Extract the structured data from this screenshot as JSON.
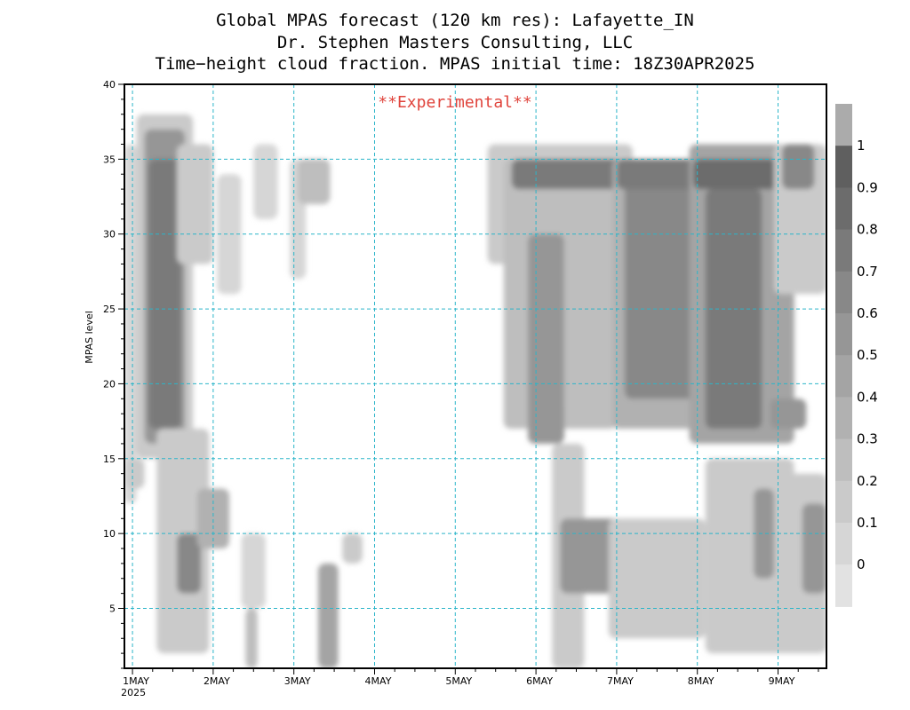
{
  "titles": [
    "Global MPAS forecast (120 km res): Lafayette_IN",
    "Dr. Stephen Masters Consulting, LLC",
    "Time−height cloud fraction.   MPAS initial time: 18Z30APR2025"
  ],
  "chart_data": {
    "type": "heatmap",
    "title": "Global MPAS forecast (120 km res): Lafayette_IN",
    "subtitle": "Time−height cloud fraction.   MPAS initial time: 18Z30APR2025",
    "credit": "Dr. Stephen Masters Consulting, LLC",
    "annotation": "**Experimental**",
    "ylabel": "MPAS level",
    "xlabel": "",
    "ylim": [
      1,
      40
    ],
    "xlim": [
      -0.1,
      8.6
    ],
    "y_ticks": [
      5,
      10,
      15,
      20,
      25,
      30,
      35,
      40
    ],
    "x_ticks": [
      {
        "x": 0,
        "label": "1MAY",
        "sub": "2025"
      },
      {
        "x": 1,
        "label": "2MAY"
      },
      {
        "x": 2,
        "label": "3MAY"
      },
      {
        "x": 3,
        "label": "4MAY"
      },
      {
        "x": 4,
        "label": "5MAY"
      },
      {
        "x": 5,
        "label": "6MAY"
      },
      {
        "x": 6,
        "label": "7MAY"
      },
      {
        "x": 7,
        "label": "8MAY"
      },
      {
        "x": 8,
        "label": "9MAY"
      }
    ],
    "grid": true,
    "colorbar": {
      "levels": [
        0,
        0.1,
        0.2,
        0.3,
        0.4,
        0.5,
        0.6,
        0.7,
        0.8,
        0.9,
        1
      ],
      "labels": [
        "0",
        "0.1",
        "0.2",
        "0.3",
        "0.4",
        "0.5",
        "0.6",
        "0.7",
        "0.8",
        "0.9",
        "1"
      ],
      "colors": [
        "#e2e2e2",
        "#d6d6d6",
        "#cacaca",
        "#bebebe",
        "#b1b1b1",
        "#a4a4a4",
        "#969696",
        "#888888",
        "#7a7a7a",
        "#6c6c6c",
        "#5f5f5f",
        "#ababab"
      ]
    },
    "cloud_regions": [
      {
        "x0": -0.1,
        "x1": 0.05,
        "y0": 12,
        "y1": 36,
        "value": 0.15
      },
      {
        "x0": 0.05,
        "x1": 0.75,
        "y0": 15,
        "y1": 38,
        "value": 0.25
      },
      {
        "x0": 0.15,
        "x1": 0.65,
        "y0": 16,
        "y1": 37,
        "value": 0.6
      },
      {
        "x0": 0.2,
        "x1": 0.6,
        "y0": 17,
        "y1": 35,
        "value": 0.85
      },
      {
        "x0": 0.55,
        "x1": 1.0,
        "y0": 28,
        "y1": 36,
        "value": 0.2
      },
      {
        "x0": 0.3,
        "x1": 0.95,
        "y0": 2,
        "y1": 17,
        "value": 0.2
      },
      {
        "x0": 0.55,
        "x1": 0.85,
        "y0": 6,
        "y1": 10,
        "value": 0.7
      },
      {
        "x0": 0.8,
        "x1": 1.2,
        "y0": 9,
        "y1": 13,
        "value": 0.4
      },
      {
        "x0": -0.1,
        "x1": 0.15,
        "y0": 13,
        "y1": 15,
        "value": 0.25
      },
      {
        "x0": 1.05,
        "x1": 1.35,
        "y0": 26,
        "y1": 34,
        "value": 0.15
      },
      {
        "x0": 1.35,
        "x1": 1.65,
        "y0": 5,
        "y1": 10,
        "value": 0.15
      },
      {
        "x0": 1.4,
        "x1": 1.55,
        "y0": 1,
        "y1": 5,
        "value": 0.3
      },
      {
        "x0": 1.5,
        "x1": 1.8,
        "y0": 31,
        "y1": 36,
        "value": 0.15
      },
      {
        "x0": 1.95,
        "x1": 2.15,
        "y0": 27,
        "y1": 35,
        "value": 0.1
      },
      {
        "x0": 2.05,
        "x1": 2.45,
        "y0": 32,
        "y1": 35,
        "value": 0.3
      },
      {
        "x0": 2.3,
        "x1": 2.55,
        "y0": 1,
        "y1": 8,
        "value": 0.5
      },
      {
        "x0": 2.6,
        "x1": 2.85,
        "y0": 8,
        "y1": 10,
        "value": 0.25
      },
      {
        "x0": 4.4,
        "x1": 6.2,
        "y0": 28,
        "y1": 36,
        "value": 0.2
      },
      {
        "x0": 4.6,
        "x1": 6.0,
        "y0": 17,
        "y1": 35,
        "value": 0.3
      },
      {
        "x0": 4.9,
        "x1": 5.35,
        "y0": 16,
        "y1": 30,
        "value": 0.6
      },
      {
        "x0": 5.35,
        "x1": 6.0,
        "y0": 18,
        "y1": 34,
        "value": 0.35
      },
      {
        "x0": 4.7,
        "x1": 6.3,
        "y0": 33,
        "y1": 35,
        "value": 0.85
      },
      {
        "x0": 5.2,
        "x1": 5.6,
        "y0": 1,
        "y1": 16,
        "value": 0.2
      },
      {
        "x0": 5.3,
        "x1": 6.1,
        "y0": 6,
        "y1": 11,
        "value": 0.6
      },
      {
        "x0": 5.95,
        "x1": 7.1,
        "y0": 17,
        "y1": 35,
        "value": 0.45
      },
      {
        "x0": 6.1,
        "x1": 7.0,
        "y0": 19,
        "y1": 34,
        "value": 0.75
      },
      {
        "x0": 6.0,
        "x1": 7.2,
        "y0": 33,
        "y1": 35,
        "value": 0.85
      },
      {
        "x0": 5.9,
        "x1": 7.1,
        "y0": 3,
        "y1": 11,
        "value": 0.25
      },
      {
        "x0": 6.9,
        "x1": 8.2,
        "y0": 16,
        "y1": 36,
        "value": 0.5
      },
      {
        "x0": 7.1,
        "x1": 7.8,
        "y0": 17,
        "y1": 33,
        "value": 0.8
      },
      {
        "x0": 6.95,
        "x1": 8.0,
        "y0": 33,
        "y1": 35,
        "value": 0.9
      },
      {
        "x0": 7.9,
        "x1": 8.35,
        "y0": 17,
        "y1": 19,
        "value": 0.6
      },
      {
        "x0": 7.1,
        "x1": 8.2,
        "y0": 2,
        "y1": 15,
        "value": 0.25
      },
      {
        "x0": 7.7,
        "x1": 7.95,
        "y0": 7,
        "y1": 13,
        "value": 0.6
      },
      {
        "x0": 7.95,
        "x1": 8.6,
        "y0": 26,
        "y1": 36,
        "value": 0.2
      },
      {
        "x0": 8.05,
        "x1": 8.45,
        "y0": 33,
        "y1": 36,
        "value": 0.7
      },
      {
        "x0": 8.05,
        "x1": 8.6,
        "y0": 2,
        "y1": 14,
        "value": 0.25
      },
      {
        "x0": 8.3,
        "x1": 8.6,
        "y0": 6,
        "y1": 12,
        "value": 0.6
      }
    ]
  }
}
